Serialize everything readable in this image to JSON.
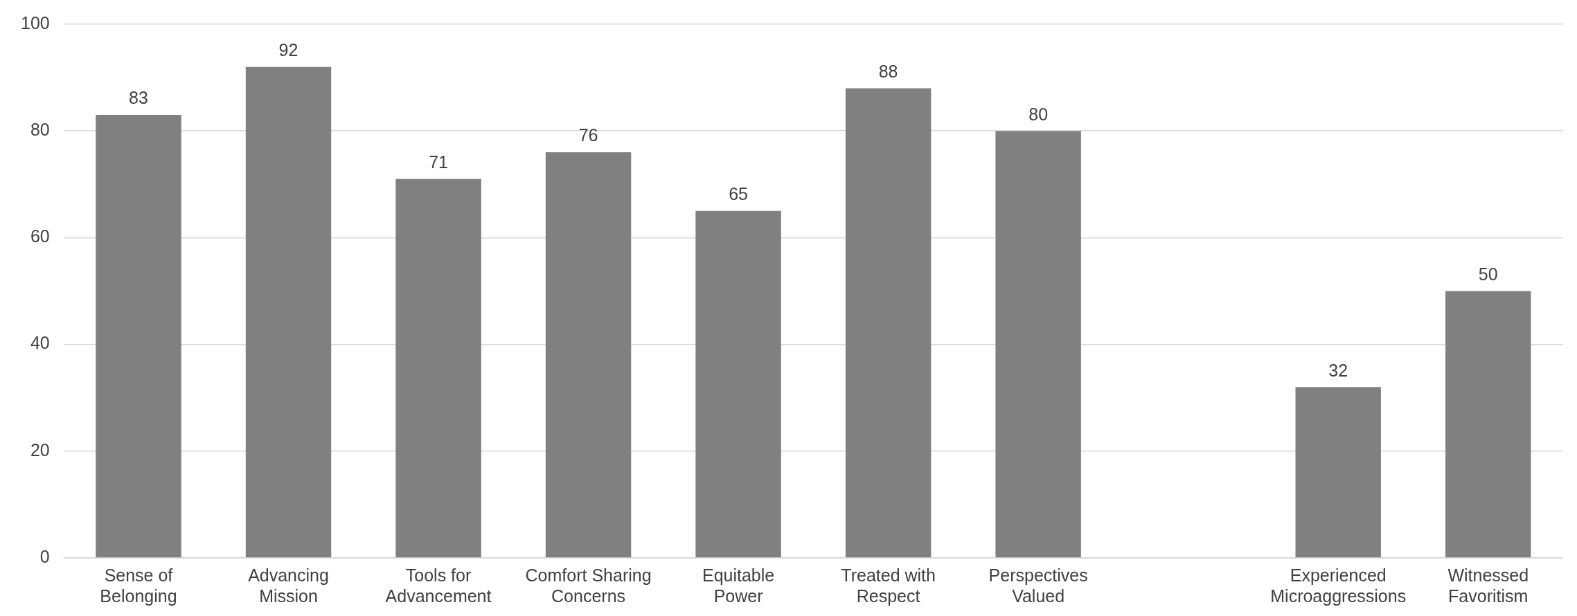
{
  "chart_data": {
    "type": "bar",
    "categories": [
      "Sense of Belonging",
      "Advancing Mission",
      "Tools for Advancement",
      "Comfort Sharing Concerns",
      "Equitable Power",
      "Treated with Respect",
      "Perspectives Valued",
      null,
      "Experienced Microaggressions",
      "Witnessed Favoritism"
    ],
    "values": [
      83,
      92,
      71,
      76,
      65,
      88,
      80,
      null,
      32,
      50
    ],
    "color": "#808080",
    "ylim": [
      0,
      100
    ],
    "yticks": [
      0,
      20,
      40,
      60,
      80,
      100
    ],
    "grid": "y",
    "legend": false,
    "data_labels": true
  }
}
